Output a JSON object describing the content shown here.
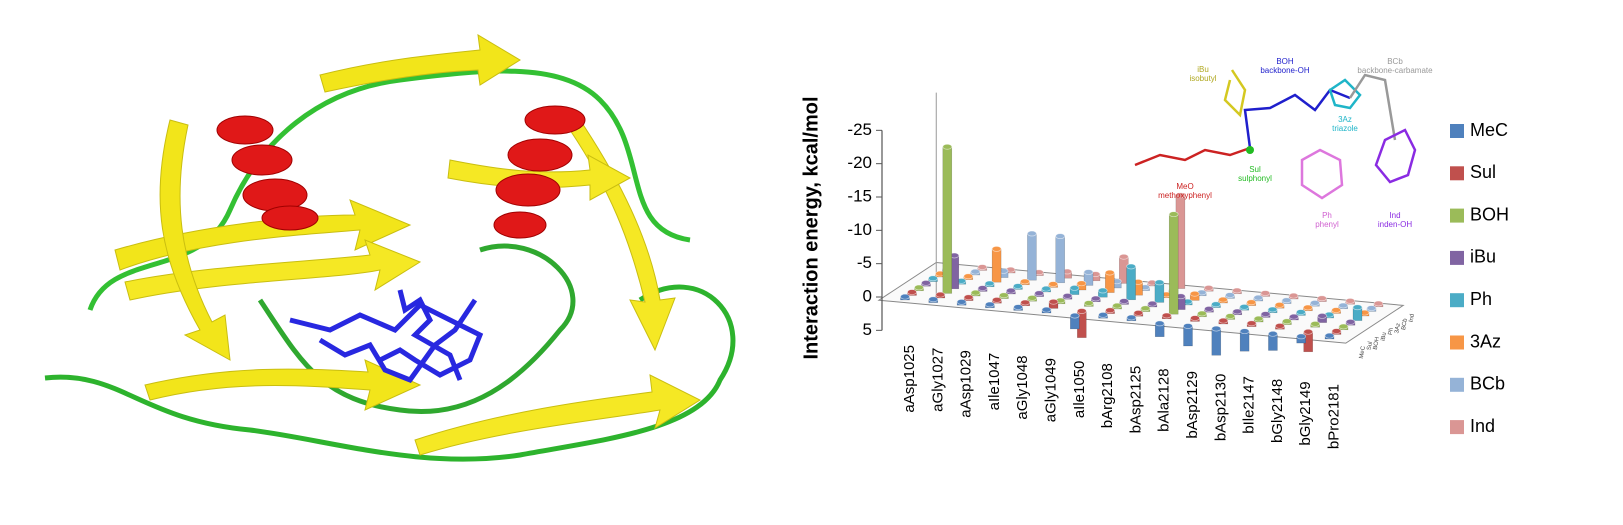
{
  "chart_data": {
    "type": "bar3d",
    "ylabel": "Interaction energy, kcal/mol",
    "ylim": [
      5,
      -25
    ],
    "yticks": [
      5,
      0,
      -5,
      -10,
      -15,
      -20,
      -25
    ],
    "categories": [
      "aAsp1025",
      "aGly1027",
      "aAsp1029",
      "aIle1047",
      "aGly1048",
      "aGly1049",
      "aIle1050",
      "bArg2108",
      "bAsp2125",
      "bAla2128",
      "bAsp2129",
      "bAsp2130",
      "bIle2147",
      "bGly2148",
      "bGly2149",
      "bPro2181"
    ],
    "series": [
      {
        "name": "MeC",
        "color": "#4f81bd",
        "values": [
          -0.5,
          -0.5,
          -0.5,
          -0.5,
          -0.5,
          -0.5,
          2,
          -0.5,
          -0.5,
          2,
          3,
          4,
          3,
          2.5,
          1,
          -0.5
        ]
      },
      {
        "name": "Sul",
        "color": "#c0504d",
        "values": [
          -0.5,
          -0.5,
          -0.5,
          -0.5,
          -0.5,
          -1,
          4,
          -0.5,
          -0.5,
          -0.5,
          -0.5,
          -0.5,
          -0.5,
          -0.5,
          3,
          -0.5
        ]
      },
      {
        "name": "BOH",
        "color": "#9bbb59",
        "values": [
          -0.5,
          -22,
          -0.5,
          -0.5,
          -0.5,
          -0.5,
          -0.5,
          -0.5,
          -0.5,
          -15,
          -0.5,
          -0.5,
          -0.5,
          -0.5,
          -0.5,
          -0.5
        ]
      },
      {
        "name": "iBu",
        "color": "#8064a2",
        "values": [
          -0.5,
          -5,
          -0.5,
          -0.5,
          -0.5,
          -0.5,
          -0.5,
          -0.5,
          -0.5,
          -2,
          -0.5,
          -0.5,
          -0.5,
          -0.5,
          -1,
          -0.5
        ]
      },
      {
        "name": "Ph",
        "color": "#4bacc6",
        "values": [
          -0.5,
          -0.5,
          -0.5,
          -0.5,
          -0.5,
          -1,
          -1,
          -5,
          -3,
          -0.5,
          -0.5,
          -0.5,
          -0.5,
          -0.5,
          -0.5,
          -2
        ]
      },
      {
        "name": "3Az",
        "color": "#f79646",
        "values": [
          -0.5,
          -0.5,
          -5,
          -0.5,
          -0.5,
          -1,
          -3,
          -2,
          -0.5,
          -1,
          -0.5,
          -0.5,
          -0.5,
          -0.5,
          -0.5,
          -0.5
        ]
      },
      {
        "name": "BCb",
        "color": "#95b3d7",
        "values": [
          -0.5,
          -0.5,
          -1,
          -7,
          -7,
          -2,
          -1,
          -0.5,
          -0.5,
          -0.5,
          -0.5,
          -0.5,
          -0.5,
          -0.5,
          -0.5,
          -0.5
        ]
      },
      {
        "name": "Ind",
        "color": "#da9694",
        "values": [
          -0.5,
          -0.5,
          -0.5,
          -0.5,
          -1,
          -1,
          -4,
          -0.5,
          -14,
          -0.5,
          -0.5,
          -0.5,
          -0.5,
          -0.5,
          -0.5,
          -0.5
        ]
      }
    ],
    "annotations": [
      {
        "text": "iBu",
        "subtext": "isobutyl",
        "color": "#b0a820"
      },
      {
        "text": "BOH",
        "subtext": "backbone-OH",
        "color": "#1f1fcc"
      },
      {
        "text": "BCb",
        "subtext": "backbone-carbamate",
        "color": "#999999"
      },
      {
        "text": "3Az",
        "subtext": "triazole",
        "color": "#1fb5c8"
      },
      {
        "text": "Sul",
        "subtext": "sulphonyl",
        "color": "#22bb22"
      },
      {
        "text": "MeO",
        "subtext": "methoxyphenyl",
        "color": "#cc2222"
      },
      {
        "text": "Ph",
        "subtext": "phenyl",
        "color": "#d060d0"
      },
      {
        "text": "Ind",
        "subtext": "inden-OH",
        "color": "#8a2be2"
      }
    ]
  }
}
